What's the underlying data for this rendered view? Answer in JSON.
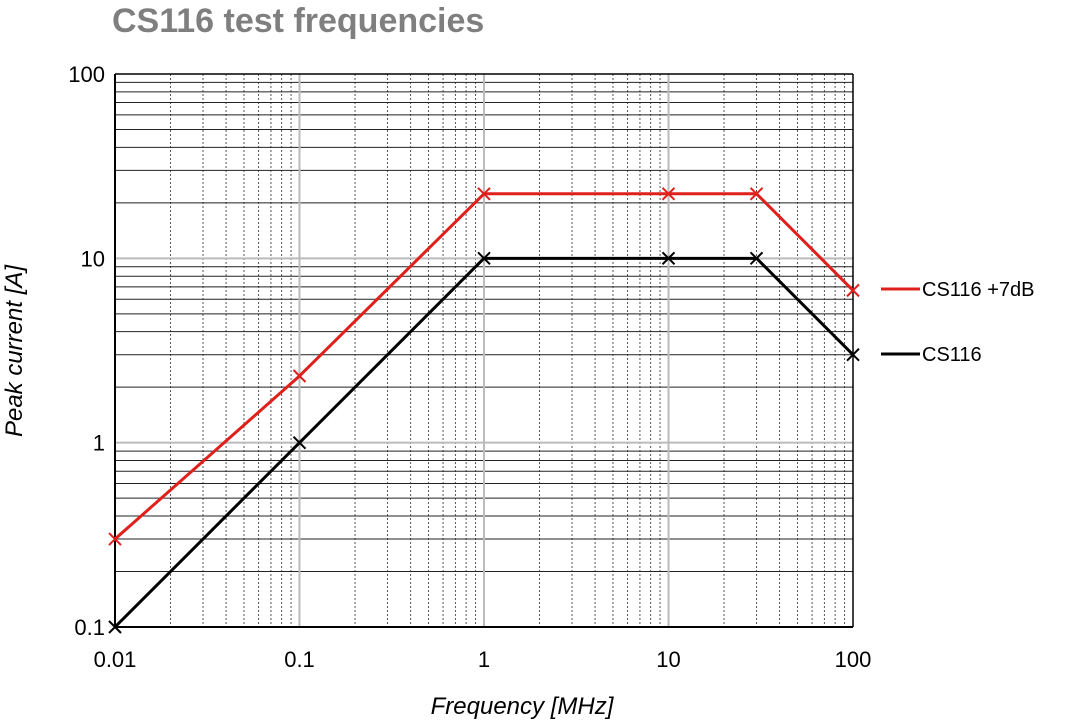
{
  "chart_data": {
    "type": "line",
    "title": "CS116 test frequencies",
    "xlabel": "Frequency [MHz]",
    "ylabel": "Peak current [A]",
    "x_scale": "log",
    "y_scale": "log",
    "xlim": [
      0.01,
      100
    ],
    "ylim": [
      0.1,
      100
    ],
    "x_ticks": [
      "0.01",
      "0.1",
      "1",
      "10",
      "100"
    ],
    "y_ticks": [
      "0.1",
      "1",
      "10",
      "100"
    ],
    "grid": true,
    "legend_position": "right",
    "series": [
      {
        "name": "CS116 +7dB",
        "color": "#e0201b",
        "marker": "x",
        "x": [
          0.01,
          0.1,
          1,
          10,
          30,
          100
        ],
        "y": [
          0.3,
          2.3,
          22.4,
          22.4,
          22.4,
          6.7
        ]
      },
      {
        "name": "CS116",
        "color": "#000000",
        "marker": "x",
        "x": [
          0.01,
          0.1,
          1,
          10,
          30,
          100
        ],
        "y": [
          0.1,
          1,
          10,
          10,
          10,
          3
        ]
      }
    ]
  }
}
